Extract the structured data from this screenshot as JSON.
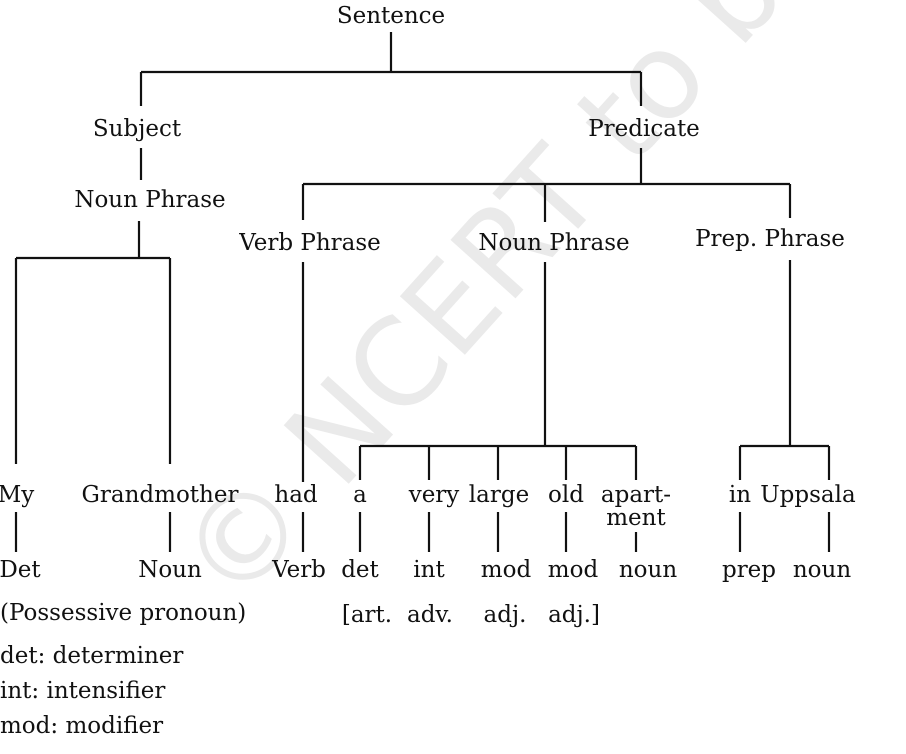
{
  "watermark": "© NCERT to be republished",
  "tree": {
    "root": "Sentence",
    "subject": "Subject",
    "predicate": "Predicate",
    "subject_np": "Noun Phrase",
    "verb_phrase": "Verb Phrase",
    "object_np": "Noun Phrase",
    "prep_phrase": "Prep. Phrase"
  },
  "words": [
    {
      "text": "My",
      "tag": "Det"
    },
    {
      "text": "Grandmother",
      "tag": "Noun"
    },
    {
      "text": "had",
      "tag": "Verb"
    },
    {
      "text": "a",
      "tag": "det"
    },
    {
      "text": "very",
      "tag": "int"
    },
    {
      "text": "large",
      "tag": "mod"
    },
    {
      "text": "old",
      "tag": "mod"
    },
    {
      "text": "apart-",
      "text2": "ment",
      "tag": "noun"
    },
    {
      "text": "in",
      "tag": "prep"
    },
    {
      "text": "Uppsala",
      "tag": "noun"
    }
  ],
  "notes": {
    "possessive": "(Possessive pronoun)",
    "art": "[art.",
    "adv": "adv.",
    "adj1": "adj.",
    "adj2": "adj.]"
  },
  "legend": [
    "det: determiner",
    "int: intensifier",
    "mod: modifier"
  ]
}
